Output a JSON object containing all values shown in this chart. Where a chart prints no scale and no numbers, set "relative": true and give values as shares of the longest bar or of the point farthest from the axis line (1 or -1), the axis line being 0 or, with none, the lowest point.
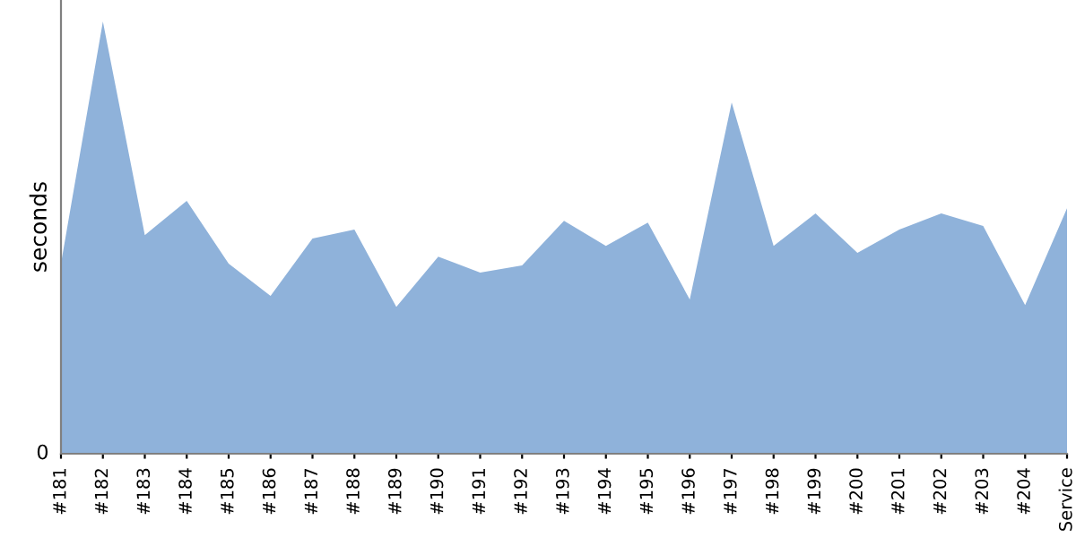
{
  "chart_data": {
    "type": "area",
    "ylabel": "seconds",
    "relative": true,
    "annotations": [
      "0"
    ],
    "color": "#8fb2da",
    "categories": [
      "#181",
      "#182",
      "#183",
      "#184",
      "#185",
      "#186",
      "#187",
      "#188",
      "#189",
      "#190",
      "#191",
      "#192",
      "#193",
      "#194",
      "#195",
      "#196",
      "#197",
      "#198",
      "#199",
      "#200",
      "#201",
      "#202",
      "#203",
      "#204",
      "Service"
    ],
    "values": [
      0.44,
      1,
      0.506,
      0.585,
      0.44,
      0.365,
      0.498,
      0.519,
      0.34,
      0.456,
      0.419,
      0.436,
      0.539,
      0.481,
      0.535,
      0.357,
      0.813,
      0.481,
      0.556,
      0.465,
      0.519,
      0.556,
      0.527,
      0.344,
      0.568
    ],
    "grid": false
  }
}
